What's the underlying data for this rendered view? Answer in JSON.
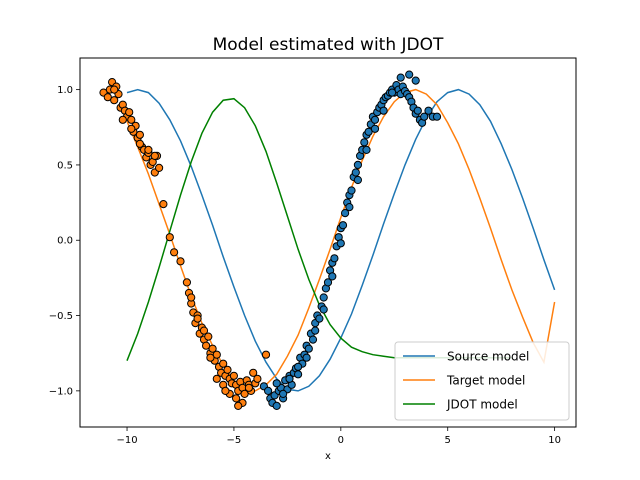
{
  "chart_data": {
    "type": "scatter",
    "title": "Model estimated with JDOT",
    "xlabel": "x",
    "ylabel": "",
    "xlim": [
      -12.2,
      11.0
    ],
    "ylim": [
      -1.24,
      1.21
    ],
    "xticks": [
      -10,
      -5,
      0,
      5,
      10
    ],
    "xtick_labels": [
      "−10",
      "−5",
      "0",
      "5",
      "10"
    ],
    "yticks": [
      -1.0,
      -0.5,
      0.0,
      0.5,
      1.0
    ],
    "ytick_labels": [
      "−1.0",
      "−0.5",
      "0.0",
      "0.5",
      "1.0"
    ],
    "grid": false,
    "legend_position": "lower-right",
    "series": [
      {
        "name": "Source model",
        "kind": "line",
        "color": "#1f77b4",
        "x": [
          -10,
          -9.5,
          -9,
          -8.5,
          -8,
          -7.5,
          -7,
          -6.5,
          -6,
          -5.5,
          -5,
          -4.5,
          -4,
          -3.5,
          -3,
          -2.5,
          -2,
          -1.5,
          -1,
          -0.5,
          0,
          0.5,
          1,
          1.5,
          2,
          2.5,
          3,
          3.5,
          4,
          4.5,
          5,
          5.5,
          6,
          6.5,
          7,
          7.5,
          8,
          8.5,
          9,
          9.5,
          10
        ],
        "y": [
          0.98,
          1.0,
          0.98,
          0.91,
          0.8,
          0.66,
          0.49,
          0.3,
          0.1,
          -0.11,
          -0.31,
          -0.5,
          -0.67,
          -0.81,
          -0.92,
          -0.99,
          -1.0,
          -0.97,
          -0.9,
          -0.79,
          -0.65,
          -0.49,
          -0.3,
          -0.1,
          0.11,
          0.31,
          0.5,
          0.67,
          0.81,
          0.92,
          0.98,
          1.0,
          0.97,
          0.9,
          0.79,
          0.64,
          0.47,
          0.28,
          0.08,
          -0.13,
          -0.33
        ]
      },
      {
        "name": "Target model",
        "kind": "line",
        "color": "#ff7f0e",
        "x": [
          -10,
          -9.5,
          -9,
          -8.5,
          -8,
          -7.5,
          -7,
          -6.5,
          -6,
          -5.5,
          -5,
          -4.5,
          -4,
          -3.5,
          -3,
          -2.5,
          -2,
          -1.5,
          -1,
          -0.5,
          0,
          0.5,
          1,
          1.5,
          2,
          2.5,
          3,
          3.5,
          4,
          4.5,
          5,
          5.5,
          6,
          6.5,
          7,
          7.5,
          8,
          8.5,
          9,
          9.5,
          10
        ],
        "y": [
          0.79,
          0.62,
          0.44,
          0.24,
          0.04,
          -0.17,
          -0.37,
          -0.55,
          -0.7,
          -0.83,
          -0.93,
          -0.99,
          -1.0,
          -0.96,
          -0.89,
          -0.77,
          -0.63,
          -0.45,
          -0.26,
          -0.06,
          0.15,
          0.35,
          0.53,
          0.69,
          0.82,
          0.92,
          0.98,
          1.0,
          0.97,
          0.9,
          0.78,
          0.64,
          0.47,
          0.28,
          0.08,
          -0.13,
          -0.33,
          -0.51,
          -0.68,
          -0.81,
          -0.41
        ]
      },
      {
        "name": "JDOT model",
        "kind": "line",
        "color": "#008000",
        "x": [
          -10,
          -9.5,
          -9,
          -8.5,
          -8,
          -7.5,
          -7,
          -6.5,
          -6,
          -5.5,
          -5,
          -4.5,
          -4,
          -3.5,
          -3,
          -2.5,
          -2,
          -1.5,
          -1,
          -0.5,
          0,
          0.5,
          1,
          1.5,
          2,
          2.5,
          3,
          3.5,
          4,
          4.5,
          5,
          5.5,
          6,
          6.5,
          7,
          7.5,
          8
        ],
        "y": [
          -0.8,
          -0.62,
          -0.41,
          -0.18,
          0.06,
          0.3,
          0.52,
          0.71,
          0.85,
          0.93,
          0.94,
          0.88,
          0.76,
          0.59,
          0.38,
          0.16,
          -0.06,
          -0.26,
          -0.43,
          -0.56,
          -0.65,
          -0.71,
          -0.74,
          -0.76,
          -0.77,
          -0.78,
          -0.78,
          -0.78,
          -0.78,
          -0.78,
          -0.78,
          -0.78,
          -0.78,
          -0.78,
          -0.78,
          -0.78,
          -0.78
        ]
      },
      {
        "name": "",
        "kind": "points",
        "color": "#1f77b4",
        "x": [
          -3.6,
          -3.4,
          -3.3,
          -3.2,
          -3.1,
          -3.0,
          -2.9,
          -2.8,
          -2.7,
          -2.6,
          -2.5,
          -2.4,
          -2.3,
          -2.2,
          -2.1,
          -2.0,
          -1.9,
          -1.8,
          -1.7,
          -1.6,
          -1.5,
          -1.4,
          -1.3,
          -1.2,
          -1.1,
          -1.0,
          -0.9,
          -0.8,
          -0.7,
          -0.6,
          -0.5,
          -0.4,
          -0.3,
          -0.2,
          -0.1,
          0.0,
          0.1,
          0.2,
          0.3,
          0.4,
          0.5,
          0.6,
          0.7,
          0.8,
          0.9,
          1.0,
          1.1,
          1.2,
          1.3,
          1.4,
          1.5,
          1.6,
          1.7,
          1.8,
          1.9,
          2.0,
          2.1,
          2.2,
          2.3,
          2.4,
          2.5,
          2.6,
          2.7,
          2.8,
          2.9,
          3.0,
          3.1,
          3.2,
          3.3,
          3.4,
          3.5,
          3.6,
          3.7,
          3.8,
          3.9,
          4.1,
          4.3,
          4.5,
          -3.0,
          -2.7,
          -2.4,
          -2.0,
          -1.6,
          -1.2,
          -0.8,
          -0.4,
          0.0,
          0.4,
          0.8,
          1.2,
          1.6,
          2.0,
          2.4,
          2.8,
          3.2,
          3.5
        ],
        "y": [
          -0.97,
          -1.0,
          -1.05,
          -1.08,
          -1.03,
          -1.1,
          -1.0,
          -0.98,
          -1.05,
          -0.93,
          -0.99,
          -0.9,
          -0.96,
          -0.88,
          -0.85,
          -0.89,
          -0.78,
          -0.82,
          -0.76,
          -0.7,
          -0.72,
          -0.62,
          -0.66,
          -0.55,
          -0.5,
          -0.52,
          -0.44,
          -0.38,
          -0.32,
          -0.28,
          -0.2,
          -0.15,
          -0.12,
          -0.04,
          0.02,
          0.08,
          0.1,
          0.18,
          0.25,
          0.3,
          0.33,
          0.42,
          0.45,
          0.5,
          0.56,
          0.6,
          0.65,
          0.7,
          0.72,
          0.77,
          0.82,
          0.8,
          0.85,
          0.88,
          0.9,
          0.93,
          0.95,
          0.96,
          0.98,
          1.0,
          0.98,
          1.03,
          1.0,
          0.97,
          1.02,
          0.99,
          0.97,
          0.95,
          0.92,
          0.88,
          0.84,
          0.86,
          0.8,
          0.78,
          0.82,
          0.86,
          0.82,
          0.82,
          -0.95,
          -1.02,
          -0.92,
          -0.84,
          -0.78,
          -0.6,
          -0.46,
          -0.24,
          -0.02,
          0.22,
          0.4,
          0.6,
          0.74,
          0.86,
          0.98,
          1.08,
          1.1,
          1.06
        ],
        "y_scale_note": ""
      },
      {
        "name": "",
        "kind": "points",
        "color": "#ff7f0e",
        "x": [
          -11.1,
          -10.9,
          -10.8,
          -10.7,
          -10.6,
          -10.5,
          -10.4,
          -10.3,
          -10.2,
          -10.1,
          -10.0,
          -9.9,
          -9.8,
          -9.7,
          -9.6,
          -9.5,
          -9.4,
          -9.3,
          -9.2,
          -9.1,
          -9.0,
          -8.9,
          -8.8,
          -8.7,
          -8.6,
          -8.5,
          -8.3,
          -8.0,
          -7.8,
          -7.5,
          -7.2,
          -7.1,
          -7.0,
          -6.9,
          -6.8,
          -6.7,
          -6.6,
          -6.5,
          -6.4,
          -6.3,
          -6.2,
          -6.1,
          -6.0,
          -5.9,
          -5.8,
          -5.7,
          -5.6,
          -5.5,
          -5.4,
          -5.3,
          -5.2,
          -5.1,
          -5.0,
          -4.9,
          -4.8,
          -4.7,
          -4.6,
          -4.5,
          -4.4,
          -4.3,
          -4.2,
          -4.1,
          -4.0,
          -3.9,
          -3.5,
          -10.6,
          -10.2,
          -9.8,
          -9.4,
          -9.0,
          -8.7,
          -7.0,
          -6.7,
          -6.4,
          -6.1,
          -5.8,
          -5.5,
          -5.2,
          -4.9,
          -4.6,
          -4.3,
          -4.8,
          -5.4
        ],
        "y": [
          0.98,
          0.95,
          1.0,
          1.05,
          0.93,
          1.02,
          0.97,
          0.88,
          0.9,
          0.86,
          0.82,
          0.85,
          0.8,
          0.72,
          0.76,
          0.68,
          0.7,
          0.62,
          0.6,
          0.55,
          0.58,
          0.5,
          0.52,
          0.45,
          0.56,
          0.48,
          0.24,
          0.02,
          -0.08,
          -0.14,
          -0.28,
          -0.35,
          -0.42,
          -0.48,
          -0.55,
          -0.5,
          -0.62,
          -0.58,
          -0.66,
          -0.7,
          -0.64,
          -0.75,
          -0.72,
          -0.8,
          -0.76,
          -0.84,
          -0.88,
          -0.82,
          -0.9,
          -0.86,
          -0.92,
          -0.95,
          -0.9,
          -0.96,
          -1.0,
          -0.94,
          -0.98,
          -1.02,
          -0.93,
          -0.96,
          -1.0,
          -0.88,
          -0.95,
          -0.92,
          -0.76,
          1.0,
          0.8,
          0.74,
          0.64,
          0.6,
          0.56,
          -0.38,
          -0.52,
          -0.6,
          -0.78,
          -0.92,
          -0.96,
          -1.02,
          -1.05,
          -1.08,
          -0.98,
          -1.1,
          -1.0
        ]
      }
    ]
  }
}
